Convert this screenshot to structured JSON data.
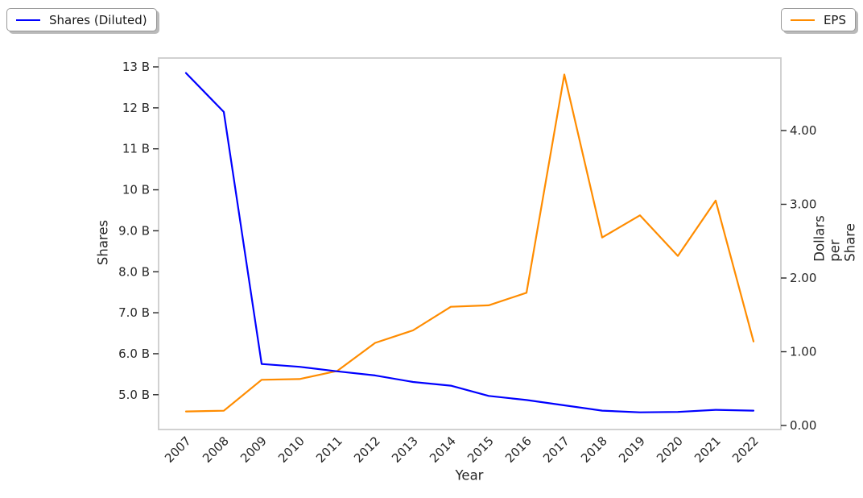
{
  "chart_data": {
    "type": "line",
    "x_categories": [
      "2007",
      "2008",
      "2009",
      "2010",
      "2011",
      "2012",
      "2013",
      "2014",
      "2015",
      "2016",
      "2017",
      "2018",
      "2019",
      "2020",
      "2021",
      "2022"
    ],
    "xlabel": "Year",
    "series": [
      {
        "name": "Shares (Diluted)",
        "axis": "left",
        "color": "#0000ff",
        "values": [
          12.85,
          11.9,
          5.75,
          5.68,
          5.57,
          5.47,
          5.31,
          5.22,
          4.97,
          4.87,
          4.74,
          4.61,
          4.57,
          4.58,
          4.63,
          4.61
        ]
      },
      {
        "name": "EPS",
        "axis": "right",
        "color": "#ff8c00",
        "values": [
          0.19,
          0.2,
          0.62,
          0.63,
          0.74,
          1.12,
          1.29,
          1.61,
          1.63,
          1.8,
          4.76,
          2.55,
          2.85,
          2.3,
          3.05,
          1.14
        ]
      }
    ],
    "left_axis": {
      "label": "Shares",
      "unit": "billions",
      "tick_values": [
        13,
        12,
        11,
        10,
        9,
        8,
        7,
        6,
        5
      ],
      "tick_labels": [
        "13 B",
        "12 B",
        "11 B",
        "10 B",
        "9.0 B",
        "8.0 B",
        "7.0 B",
        "6.0 B",
        "5.0 B"
      ],
      "range": [
        4.15,
        13.25
      ]
    },
    "right_axis": {
      "label": "Dollars per Share",
      "tick_values": [
        4,
        3,
        2,
        1,
        0
      ],
      "tick_labels": [
        "4.00",
        "3.00",
        "2.00",
        "1.00",
        "0.00"
      ],
      "range": [
        -0.05,
        5.0
      ]
    },
    "legend": {
      "position": "outside-top",
      "entries": [
        "Shares (Diluted)",
        "EPS"
      ]
    },
    "grid": false,
    "title": ""
  },
  "legends": {
    "shares_label": "Shares (Diluted)",
    "eps_label": "EPS"
  },
  "style": {
    "spine_color": "#cccccc",
    "tick_color": "#262626",
    "tick_label_color": "#262626",
    "shares_color": "#0000ff",
    "eps_color": "#ff8c00"
  }
}
